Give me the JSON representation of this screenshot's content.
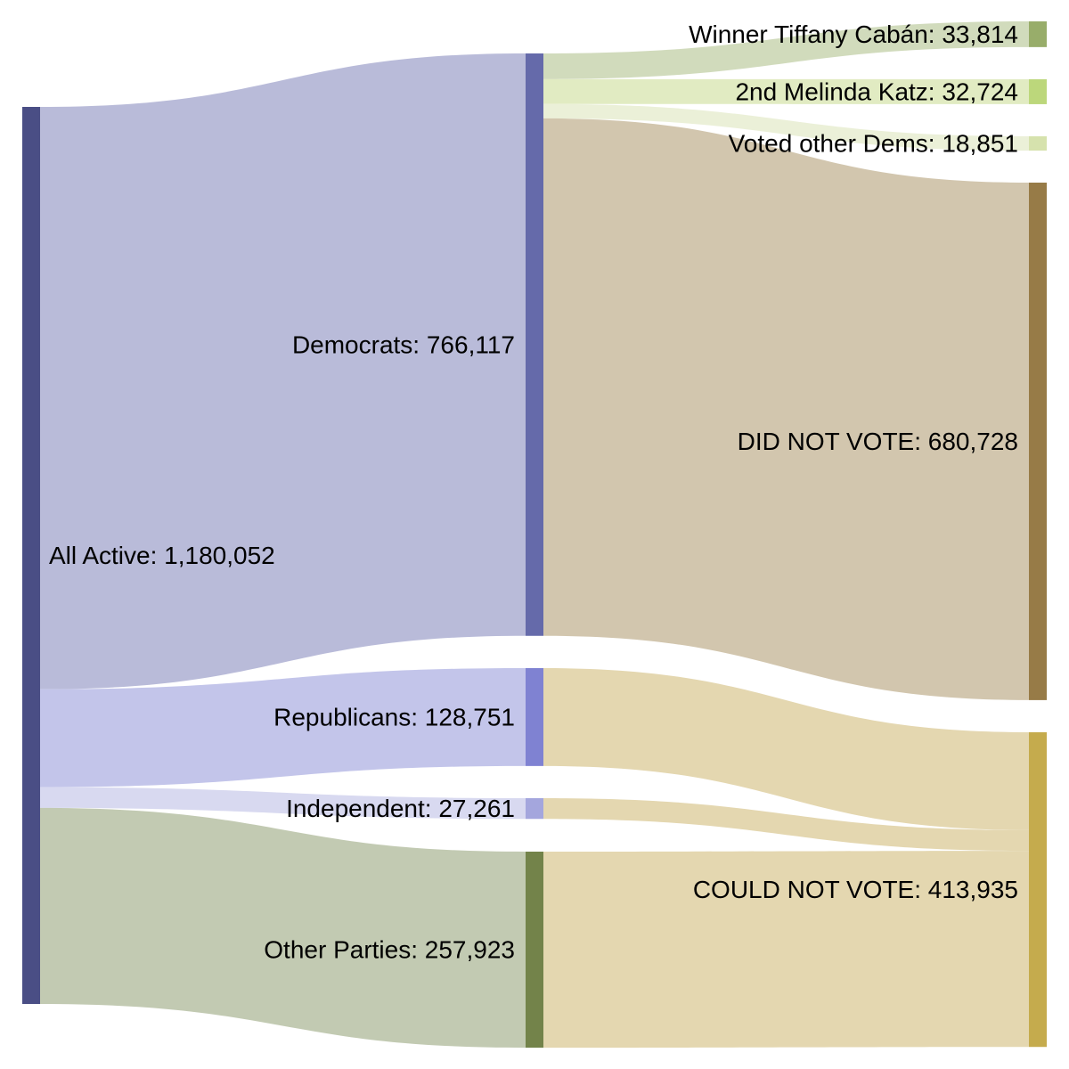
{
  "chart_data": {
    "type": "sankey",
    "nodes": [
      {
        "id": "all",
        "label": "All Active: 1,180,052",
        "value": 1180052,
        "color": "#4a4e85"
      },
      {
        "id": "dem",
        "label": "Democrats: 766,117",
        "value": 766117,
        "color": "#656aaa"
      },
      {
        "id": "rep",
        "label": "Republicans: 128,751",
        "value": 128751,
        "color": "#7f82d2"
      },
      {
        "id": "ind",
        "label": "Independent: 27,261",
        "value": 27261,
        "color": "#a4a6dd"
      },
      {
        "id": "oth",
        "label": "Other Parties: 257,923",
        "value": 257923,
        "color": "#73834a"
      },
      {
        "id": "caban",
        "label": "Winner Tiffany Cabán: 33,814",
        "value": 33814,
        "color": "#98ad6a"
      },
      {
        "id": "katz",
        "label": "2nd Melinda Katz: 32,724",
        "value": 32724,
        "color": "#bcd77b"
      },
      {
        "id": "otherdems",
        "label": "Voted other Dems: 18,851",
        "value": 18851,
        "color": "#d6e2ad"
      },
      {
        "id": "dnv",
        "label": "DID NOT VOTE: 680,728",
        "value": 680728,
        "color": "#977b47"
      },
      {
        "id": "cnv",
        "label": "COULD NOT VOTE: 413,935",
        "value": 413935,
        "color": "#c5ab4d"
      }
    ],
    "links": [
      {
        "source": "all",
        "target": "dem",
        "value": 766117,
        "color": "#b9bbd9"
      },
      {
        "source": "all",
        "target": "rep",
        "value": 128751,
        "color": "#c3c5ea"
      },
      {
        "source": "all",
        "target": "ind",
        "value": 27261,
        "color": "#d8d9f0"
      },
      {
        "source": "all",
        "target": "oth",
        "value": 257923,
        "color": "#c2cab2"
      },
      {
        "source": "dem",
        "target": "caban",
        "value": 33814,
        "color": "#d1dbbc"
      },
      {
        "source": "dem",
        "target": "katz",
        "value": 32724,
        "color": "#e1ebc2"
      },
      {
        "source": "dem",
        "target": "otherdems",
        "value": 18851,
        "color": "#ebf0d8"
      },
      {
        "source": "dem",
        "target": "dnv",
        "value": 680728,
        "color": "#d2c6ae"
      },
      {
        "source": "rep",
        "target": "cnv",
        "value": 128751,
        "color": "#e4d7b0"
      },
      {
        "source": "ind",
        "target": "cnv",
        "value": 27261,
        "color": "#e4d7b0"
      },
      {
        "source": "oth",
        "target": "cnv",
        "value": 257923,
        "color": "#e4d7b0"
      }
    ]
  }
}
